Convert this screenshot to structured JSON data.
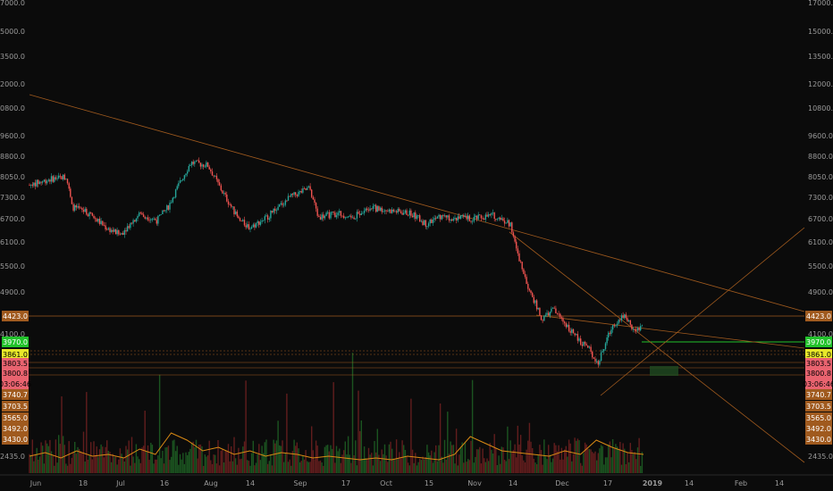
{
  "chart_data": {
    "type": "candlestick",
    "title": "",
    "y_axis": {
      "scale": "log",
      "ylim": [
        2150,
        17000
      ],
      "tick_labels": [
        "17000.0",
        "15000.0",
        "13500.0",
        "12000.0",
        "10800.0",
        "9600.0",
        "8800.0",
        "8050.0",
        "7300.0",
        "6700.0",
        "6100.0",
        "5500.0",
        "4900.0",
        "4100.0",
        "3740.7",
        "3703.5",
        "3565.0",
        "3492.0",
        "3430.0",
        "2435.0"
      ]
    },
    "x_axis": {
      "tick_labels": [
        "Jun",
        "18",
        "Jul",
        "16",
        "Aug",
        "14",
        "Sep",
        "17",
        "Oct",
        "15",
        "Nov",
        "14",
        "Dec",
        "17",
        "2019",
        "14",
        "Feb",
        "14"
      ]
    },
    "price_tags": [
      {
        "label": "4423.0",
        "color": "#a05a1e",
        "text_color": "#ffffff"
      },
      {
        "label": "3970.0",
        "color": "#22c22b",
        "text_color": "#ffffff"
      },
      {
        "label": "3861.0",
        "color": "#e8e82a",
        "text_color": "#000000"
      },
      {
        "label": "3803.5",
        "color": "#e9636f",
        "text_color": "#000000"
      },
      {
        "label": "3800.8",
        "color": "#e9636f",
        "text_color": "#000000"
      },
      {
        "label": "03:06:46",
        "color": "#e9636f",
        "text_color": "#000000"
      },
      {
        "label": "3740.7",
        "color": "#a05a1e",
        "text_color": "#ffffff"
      },
      {
        "label": "3703.5",
        "color": "#a05a1e",
        "text_color": "#ffffff"
      },
      {
        "label": "3565.0",
        "color": "#a05a1e",
        "text_color": "#ffffff"
      },
      {
        "label": "3492.0",
        "color": "#a05a1e",
        "text_color": "#ffffff"
      },
      {
        "label": "3430.0",
        "color": "#a05a1e",
        "text_color": "#ffffff"
      }
    ],
    "price_series": [
      {
        "date": "2018-05-28",
        "price": 7400
      },
      {
        "date": "2018-06-04",
        "price": 7600
      },
      {
        "date": "2018-06-10",
        "price": 7700
      },
      {
        "date": "2018-06-12",
        "price": 6700
      },
      {
        "date": "2018-06-18",
        "price": 6500
      },
      {
        "date": "2018-06-24",
        "price": 6100
      },
      {
        "date": "2018-06-29",
        "price": 5900
      },
      {
        "date": "2018-07-06",
        "price": 6500
      },
      {
        "date": "2018-07-12",
        "price": 6300
      },
      {
        "date": "2018-07-16",
        "price": 6700
      },
      {
        "date": "2018-07-24",
        "price": 8200
      },
      {
        "date": "2018-07-30",
        "price": 8100
      },
      {
        "date": "2018-08-04",
        "price": 7200
      },
      {
        "date": "2018-08-10",
        "price": 6300
      },
      {
        "date": "2018-08-14",
        "price": 6100
      },
      {
        "date": "2018-08-20",
        "price": 6400
      },
      {
        "date": "2018-08-28",
        "price": 7000
      },
      {
        "date": "2018-09-04",
        "price": 7300
      },
      {
        "date": "2018-09-07",
        "price": 6400
      },
      {
        "date": "2018-09-14",
        "price": 6500
      },
      {
        "date": "2018-09-20",
        "price": 6400
      },
      {
        "date": "2018-09-24",
        "price": 6700
      },
      {
        "date": "2018-10-01",
        "price": 6600
      },
      {
        "date": "2018-10-10",
        "price": 6500
      },
      {
        "date": "2018-10-15",
        "price": 6200
      },
      {
        "date": "2018-10-20",
        "price": 6400
      },
      {
        "date": "2018-11-01",
        "price": 6350
      },
      {
        "date": "2018-11-08",
        "price": 6450
      },
      {
        "date": "2018-11-14",
        "price": 6200
      },
      {
        "date": "2018-11-16",
        "price": 5500
      },
      {
        "date": "2018-11-20",
        "price": 4700
      },
      {
        "date": "2018-11-25",
        "price": 4000
      },
      {
        "date": "2018-11-29",
        "price": 4200
      },
      {
        "date": "2018-12-04",
        "price": 3900
      },
      {
        "date": "2018-12-08",
        "price": 3650
      },
      {
        "date": "2018-12-11",
        "price": 3550
      },
      {
        "date": "2018-12-15",
        "price": 3280
      },
      {
        "date": "2018-12-20",
        "price": 3900
      },
      {
        "date": "2018-12-24",
        "price": 4100
      },
      {
        "date": "2018-12-28",
        "price": 3800
      },
      {
        "date": "2018-12-31",
        "price": 3861
      }
    ],
    "volume_avg": [
      0.35,
      0.45,
      0.3,
      0.5,
      0.35,
      0.4,
      0.3,
      0.55,
      0.4,
      1.0,
      0.8,
      0.5,
      0.6,
      0.4,
      0.5,
      0.35,
      0.45,
      0.4,
      0.3,
      0.35,
      0.3,
      0.25,
      0.3,
      0.25,
      0.35,
      0.3,
      0.25,
      0.4,
      0.9,
      0.7,
      0.5,
      0.45,
      0.4,
      0.35,
      0.5,
      0.4,
      0.8,
      0.6,
      0.45,
      0.4
    ],
    "legend": "none",
    "grid": false
  }
}
